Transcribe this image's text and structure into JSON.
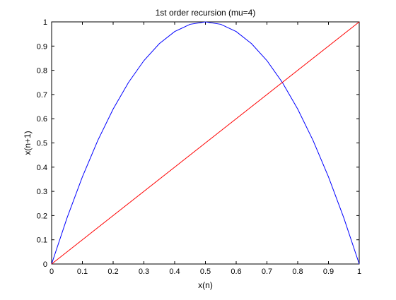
{
  "chart_data": {
    "type": "line",
    "title": "1st order recursion (mu=4)",
    "xlabel": "x(n)",
    "ylabel": "x(n+1)",
    "xlim": [
      0,
      1
    ],
    "ylim": [
      0,
      1
    ],
    "xticks": [
      0,
      0.1,
      0.2,
      0.3,
      0.4,
      0.5,
      0.6,
      0.7,
      0.8,
      0.9,
      1
    ],
    "yticks": [
      0,
      0.1,
      0.2,
      0.3,
      0.4,
      0.5,
      0.6,
      0.7,
      0.8,
      0.9,
      1
    ],
    "xtick_labels": [
      "0",
      "0.1",
      "0.2",
      "0.3",
      "0.4",
      "0.5",
      "0.6",
      "0.7",
      "0.8",
      "0.9",
      "1"
    ],
    "ytick_labels": [
      "0",
      "0.1",
      "0.2",
      "0.3",
      "0.4",
      "0.5",
      "0.6",
      "0.7",
      "0.8",
      "0.9",
      "1"
    ],
    "grid": false,
    "legend": "none",
    "series": [
      {
        "color": "#0000ff",
        "x": [
          0,
          0.05,
          0.1,
          0.15,
          0.2,
          0.25,
          0.3,
          0.35,
          0.4,
          0.45,
          0.5,
          0.55,
          0.6,
          0.65,
          0.7,
          0.75,
          0.8,
          0.85,
          0.9,
          0.95,
          1
        ],
        "y": [
          0,
          0.19,
          0.36,
          0.51,
          0.64,
          0.75,
          0.84,
          0.91,
          0.96,
          0.99,
          1,
          0.99,
          0.96,
          0.91,
          0.84,
          0.75,
          0.64,
          0.51,
          0.36,
          0.19,
          0
        ]
      },
      {
        "color": "#ff0000",
        "x": [
          0,
          1
        ],
        "y": [
          0,
          1
        ]
      }
    ]
  }
}
